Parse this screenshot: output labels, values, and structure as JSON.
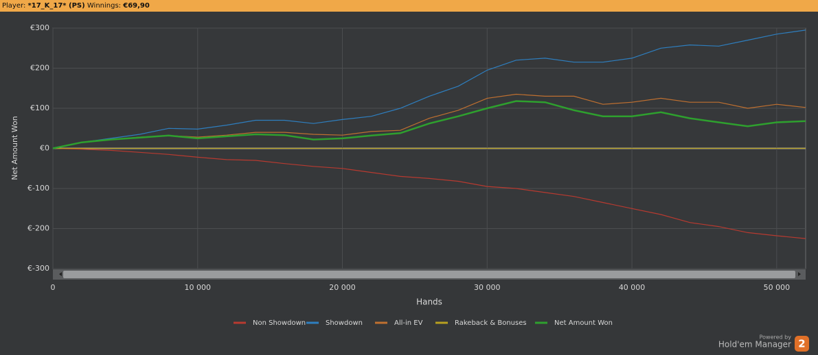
{
  "header": {
    "player_label": "Player:",
    "player": "*17_K_17* (PS)",
    "winnings_label": "Winnings:",
    "winnings": "€69,90"
  },
  "chart_data": {
    "type": "line",
    "y_label": "Net Amount Won",
    "x_label": "Hands",
    "xlim": [
      0,
      52000
    ],
    "xticks": [
      0,
      {
        "value": 10000,
        "label": "10 000"
      },
      {
        "value": 20000,
        "label": "20 000"
      },
      {
        "value": 30000,
        "label": "30 000"
      },
      {
        "value": 40000,
        "label": "40 000"
      },
      {
        "value": 50000,
        "label": "50 000"
      }
    ],
    "ylim": [
      -300,
      300
    ],
    "yticks": [
      {
        "value": 300,
        "label": "€300"
      },
      {
        "value": 200,
        "label": "€200"
      },
      {
        "value": 100,
        "label": "€100"
      },
      {
        "value": 0,
        "label": "€0"
      },
      {
        "value": -100,
        "label": "€-100"
      },
      {
        "value": -200,
        "label": "€-200"
      },
      {
        "value": -300,
        "label": "€-300"
      }
    ],
    "grid": true,
    "legend": "bottom",
    "x": [
      0,
      2000,
      4000,
      6000,
      8000,
      10000,
      12000,
      14000,
      16000,
      18000,
      20000,
      22000,
      24000,
      26000,
      28000,
      30000,
      32000,
      34000,
      36000,
      38000,
      40000,
      42000,
      44000,
      46000,
      48000,
      50000,
      52000
    ],
    "series": [
      {
        "name": "Non Showdown",
        "color": "#b83a30",
        "values": [
          0,
          -2,
          -5,
          -10,
          -15,
          -22,
          -28,
          -30,
          -38,
          -45,
          -50,
          -60,
          -70,
          -75,
          -82,
          -95,
          -100,
          -110,
          -120,
          -135,
          -150,
          -165,
          -185,
          -195,
          -210,
          -218,
          -225
        ]
      },
      {
        "name": "Showdown",
        "color": "#2e7fc0",
        "values": [
          0,
          15,
          25,
          35,
          50,
          48,
          58,
          70,
          70,
          62,
          72,
          80,
          100,
          130,
          155,
          195,
          220,
          225,
          215,
          215,
          225,
          250,
          258,
          255,
          270,
          285,
          295
        ]
      },
      {
        "name": "All-in EV",
        "color": "#c07030",
        "values": [
          0,
          15,
          22,
          28,
          32,
          28,
          33,
          40,
          40,
          35,
          33,
          42,
          45,
          75,
          95,
          125,
          135,
          130,
          130,
          110,
          115,
          125,
          115,
          115,
          100,
          110,
          102
        ]
      },
      {
        "name": "Rakeback & Bonuses",
        "color": "#b8a020",
        "values": [
          0,
          0,
          0,
          0,
          0,
          0,
          0,
          0,
          0,
          0,
          0,
          0,
          0,
          0,
          0,
          0,
          0,
          0,
          0,
          0,
          0,
          0,
          0,
          0,
          0,
          0,
          0
        ]
      },
      {
        "name": "Net Amount Won",
        "color": "#2ea02e",
        "values": [
          0,
          15,
          22,
          27,
          32,
          25,
          30,
          35,
          33,
          22,
          25,
          32,
          38,
          62,
          80,
          100,
          118,
          115,
          95,
          80,
          80,
          90,
          75,
          65,
          55,
          65,
          68
        ]
      }
    ]
  },
  "branding": {
    "powered_by": "Powered by",
    "product": "Hold'em Manager",
    "badge": "2"
  }
}
